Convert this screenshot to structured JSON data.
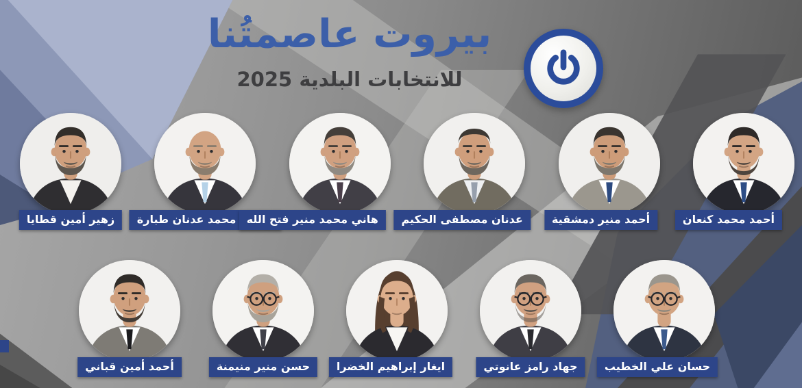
{
  "poster": {
    "title": "بيروت عاصمتُنا",
    "subtitle": "للانتخابات البلدية 2025",
    "year": "2025",
    "logo_icon": "power-icon",
    "colors": {
      "title_blue": "#3c5fa9",
      "subtitle_dark": "#3e3e40",
      "label_blue": "#2d4589",
      "logo_ring_blue": "#2b4c9b",
      "corner_periwinkle": "#8d98b7",
      "right_field_blue": "#536080"
    }
  },
  "candidates": {
    "top": [
      {
        "name": "زهير أمين قطايا",
        "avatar": {
          "type": "male-full-beard",
          "hair": "short",
          "hairColor": "#332e2a",
          "beard": "full",
          "beardColor": "#5d564e",
          "glasses": false,
          "suit": "#2f2e31",
          "shirt": "#f4f2ee",
          "tie": null,
          "skin": "#cf9f7d",
          "bg": "#efeeec"
        }
      },
      {
        "name": "مروان محمد عدنان طبارة",
        "avatar": {
          "type": "male-bald-beard",
          "hair": "bald",
          "hairColor": "#8a7d6e",
          "beard": "full",
          "beardColor": "#8a7d6e",
          "glasses": false,
          "suit": "#36353c",
          "shirt": "#ffffff",
          "tie": "#b5d2e8",
          "skin": "#d2a483",
          "bg": "#f3f2f0"
        }
      },
      {
        "name": "هاني محمد منير فتح الله",
        "avatar": {
          "type": "male-gray-beard",
          "hair": "short",
          "hairColor": "#453f3a",
          "beard": "full",
          "beardColor": "#908a82",
          "glasses": false,
          "suit": "#413f46",
          "shirt": "#ffffff",
          "tie": "#4a3f4a",
          "skin": "#d0a080",
          "bg": "#f4f3f1"
        }
      },
      {
        "name": "عدنان مصطفى الحكيم",
        "avatar": {
          "type": "male-receding-beard",
          "hair": "receding",
          "hairColor": "#3d3833",
          "beard": "full",
          "beardColor": "#6e675e",
          "glasses": false,
          "suit": "#716c60",
          "shirt": "#eef0f2",
          "tie": "#97a0ad",
          "skin": "#cf9e7c",
          "bg": "#f1f0ee"
        }
      },
      {
        "name": "أحمد منير دمشقية",
        "avatar": {
          "type": "male-gray-beard",
          "hair": "short",
          "hairColor": "#3a342f",
          "beard": "full",
          "beardColor": "#7d776d",
          "glasses": false,
          "suit": "#9b978e",
          "shirt": "#ffffff",
          "tie": "#2c4a80",
          "skin": "#cd9c79",
          "bg": "#f0efed"
        }
      },
      {
        "name": "أحمد محمد كنعان",
        "avatar": {
          "type": "male-trim-beard",
          "hair": "short",
          "hairColor": "#2e2a28",
          "beard": "trim",
          "beardColor": "#4e453e",
          "glasses": false,
          "suit": "#26272e",
          "shirt": "#ffffff",
          "tie": "#2e4e86",
          "skin": "#d3a584",
          "bg": "#f3f2f0"
        }
      }
    ],
    "bottom": [
      {
        "name": "أحمد أمين قباني",
        "avatar": {
          "type": "male-trim-beard",
          "hair": "short",
          "hairColor": "#2f2b28",
          "beard": "trim",
          "beardColor": "#433c36",
          "glasses": false,
          "suit": "#7e7b75",
          "shirt": "#ffffff",
          "tie": "#1c1c1f",
          "skin": "#d0a07e",
          "bg": "#f2f1ef"
        }
      },
      {
        "name": "حسن منير منيمنة",
        "avatar": {
          "type": "male-glasses-gray-beard",
          "hair": "short",
          "hairColor": "#b3afa8",
          "beard": "full",
          "beardColor": "#a8a39a",
          "glasses": true,
          "suit": "#302f35",
          "shirt": "#ffffff",
          "tie": "#41414a",
          "skin": "#cfa07f",
          "bg": "#f4f3f1"
        }
      },
      {
        "name": "ايغار إبراهيم الخضرا",
        "avatar": {
          "type": "female",
          "hair": "female",
          "hairColor": "#573f2f",
          "beard": null,
          "glasses": false,
          "suit": "#2b2a2f",
          "shirt": "#f7f6f3",
          "tie": null,
          "skin": "#dcae8c",
          "bg": "#f3f2f0"
        }
      },
      {
        "name": "جهاد رامز عانوتي",
        "avatar": {
          "type": "male-glasses-stubble",
          "hair": "short",
          "hairColor": "#6b6660",
          "beard": "stubble",
          "beardColor": "#56504a",
          "glasses": true,
          "suit": "#3f3e45",
          "shirt": "#ffffff",
          "tie": "#2b2b30",
          "skin": "#d1a181",
          "bg": "#f2f1ef"
        }
      },
      {
        "name": "حسان علي الخطيب",
        "avatar": {
          "type": "male-glasses-mustache",
          "hair": "short",
          "hairColor": "#9b968d",
          "beard": null,
          "mustache": true,
          "mustacheColor": "#8d877c",
          "glasses": true,
          "suit": "#2e3442",
          "shirt": "#ffffff",
          "tie": "#3c5a8c",
          "skin": "#d2a482",
          "bg": "#f3f2f0"
        }
      }
    ]
  }
}
